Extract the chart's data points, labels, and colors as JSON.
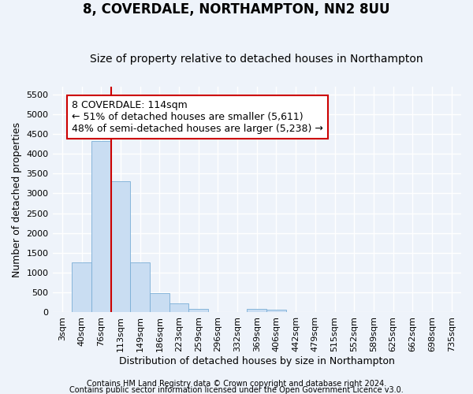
{
  "title": "8, COVERDALE, NORTHAMPTON, NN2 8UU",
  "subtitle": "Size of property relative to detached houses in Northampton",
  "xlabel": "Distribution of detached houses by size in Northampton",
  "ylabel": "Number of detached properties",
  "bar_color": "#c9ddf2",
  "bar_edge_color": "#7aaed6",
  "categories": [
    "3sqm",
    "40sqm",
    "76sqm",
    "113sqm",
    "149sqm",
    "186sqm",
    "223sqm",
    "259sqm",
    "296sqm",
    "332sqm",
    "369sqm",
    "406sqm",
    "442sqm",
    "479sqm",
    "515sqm",
    "552sqm",
    "589sqm",
    "625sqm",
    "662sqm",
    "698sqm",
    "735sqm"
  ],
  "values": [
    0,
    1270,
    4330,
    3300,
    1270,
    490,
    230,
    90,
    0,
    0,
    80,
    60,
    0,
    0,
    0,
    0,
    0,
    0,
    0,
    0,
    0
  ],
  "ylim": [
    0,
    5700
  ],
  "yticks": [
    0,
    500,
    1000,
    1500,
    2000,
    2500,
    3000,
    3500,
    4000,
    4500,
    5000,
    5500
  ],
  "vline_color": "#cc0000",
  "vline_x": 3,
  "annotation_line1": "8 COVERDALE: 114sqm",
  "annotation_line2": "← 51% of detached houses are smaller (5,611)",
  "annotation_line3": "48% of semi-detached houses are larger (5,238) →",
  "annotation_box_color": "#ffffff",
  "annotation_box_edgecolor": "#cc0000",
  "footer_line1": "Contains HM Land Registry data © Crown copyright and database right 2024.",
  "footer_line2": "Contains public sector information licensed under the Open Government Licence v3.0.",
  "background_color": "#eef3fa",
  "grid_color": "#ffffff",
  "title_fontsize": 12,
  "subtitle_fontsize": 10,
  "label_fontsize": 9,
  "tick_fontsize": 8,
  "annotation_fontsize": 9,
  "footer_fontsize": 7
}
